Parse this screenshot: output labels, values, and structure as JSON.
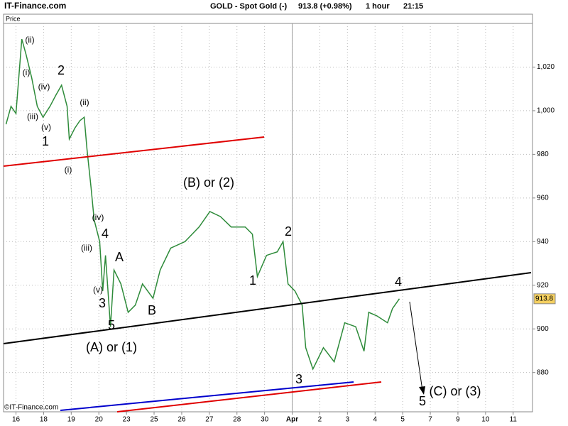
{
  "chart_data": {
    "type": "line",
    "site": "IT-Finance.com",
    "title": "GOLD - Spot Gold (-)",
    "quote": "913.8 (+0.98%)",
    "interval": "1 hour",
    "time": "21:15",
    "ylabel": "Price",
    "footer": "©IT-Finance.com",
    "xlim": [
      -0.45,
      18.7
    ],
    "ylim": [
      862,
      1040
    ],
    "xticks": [
      {
        "value": 0,
        "label": "16"
      },
      {
        "value": 1,
        "label": "18"
      },
      {
        "value": 2,
        "label": "19"
      },
      {
        "value": 3,
        "label": "20"
      },
      {
        "value": 4,
        "label": "23"
      },
      {
        "value": 5,
        "label": "25"
      },
      {
        "value": 6,
        "label": "26"
      },
      {
        "value": 7,
        "label": "27"
      },
      {
        "value": 8,
        "label": "28"
      },
      {
        "value": 9,
        "label": "30"
      },
      {
        "value": 10,
        "label": "Apr"
      },
      {
        "value": 11,
        "label": "2"
      },
      {
        "value": 12,
        "label": "3"
      },
      {
        "value": 13,
        "label": "4"
      },
      {
        "value": 14,
        "label": "5"
      },
      {
        "value": 15,
        "label": "7"
      },
      {
        "value": 16,
        "label": "9"
      },
      {
        "value": 17,
        "label": "10"
      },
      {
        "value": 18,
        "label": "11"
      }
    ],
    "yticks": [
      880,
      900,
      920,
      940,
      960,
      980,
      {
        "value": 1000,
        "label": "1,000"
      },
      {
        "value": 1020,
        "label": "1,020"
      }
    ],
    "grid": true,
    "series": [
      {
        "name": "Spot Gold",
        "color": "#2e8b3a",
        "x": [
          -0.36,
          -0.18,
          0,
          0.21,
          0.36,
          0.57,
          0.77,
          0.98,
          1.23,
          1.44,
          1.65,
          1.85,
          1.93,
          2.13,
          2.31,
          2.47,
          2.57,
          2.72,
          2.83,
          3.03,
          3.14,
          3.24,
          3.42,
          3.55,
          3.8,
          4.06,
          4.32,
          4.58,
          4.96,
          5.22,
          5.6,
          6.12,
          6.63,
          7.02,
          7.4,
          7.79,
          8.3,
          8.56,
          8.74,
          9.07,
          9.46,
          9.67,
          9.85,
          10.1,
          10.36,
          10.49,
          10.75,
          11.13,
          11.52,
          11.9,
          12.3,
          12.6,
          12.77,
          13.06,
          13.45,
          13.63,
          13.88
        ],
        "values": [
          993.8,
          1002,
          998.7,
          1032.8,
          1026,
          1015,
          1002,
          997,
          1002,
          1007,
          1011.7,
          1002,
          987,
          992,
          995.4,
          997,
          982.4,
          964.6,
          950,
          940,
          917.4,
          933.7,
          901,
          927,
          920.6,
          907.6,
          910.9,
          920.6,
          914,
          927,
          937,
          940,
          946.7,
          953.8,
          951.5,
          946.7,
          946.7,
          943.4,
          924,
          933.7,
          935.3,
          940,
          920.6,
          917.4,
          911,
          891.4,
          881.6,
          891.4,
          884.9,
          902.8,
          901,
          889.8,
          907.6,
          906,
          902.8,
          909.3,
          913.8
        ]
      }
    ],
    "last_label": "913.8",
    "annotations": [
      "(ii)",
      "(i)",
      "2",
      "(iv)",
      "(iii)",
      "(v)",
      "1",
      "(ii)",
      "(i)",
      "(B) or (2)",
      "(iv)",
      "4",
      "(iii)",
      "A",
      "(v)",
      "3",
      "B",
      "5",
      "(A) or (1)",
      "2",
      "1",
      "4",
      "3",
      "(C) or (3)",
      "5"
    ]
  }
}
